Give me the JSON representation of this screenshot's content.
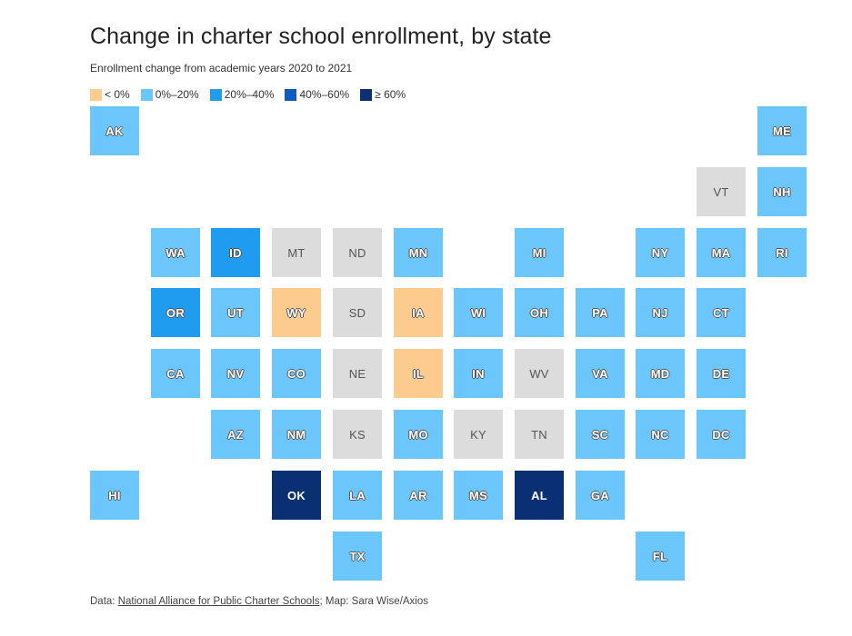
{
  "title": "Change in charter school enrollment, by state",
  "subtitle": "Enrollment change from academic years 2020 to 2021",
  "legend": [
    {
      "label": "< 0%",
      "color": "#fdcb8e"
    },
    {
      "label": "0%–20%",
      "color": "#6ac6fb"
    },
    {
      "label": "20%–40%",
      "color": "#1f9bef"
    },
    {
      "label": "40%–60%",
      "color": "#0c5cbf"
    },
    {
      "label": "≥ 60%",
      "color": "#0a2f73"
    }
  ],
  "no_data_color": "#dcdcdc",
  "states": [
    {
      "abbr": "AK",
      "bin": "0%–20%",
      "row": 0,
      "col": 0
    },
    {
      "abbr": "ME",
      "bin": "0%–20%",
      "row": 0,
      "col": 11
    },
    {
      "abbr": "VT",
      "bin": null,
      "row": 1,
      "col": 10
    },
    {
      "abbr": "NH",
      "bin": "0%–20%",
      "row": 1,
      "col": 11
    },
    {
      "abbr": "WA",
      "bin": "0%–20%",
      "row": 2,
      "col": 1
    },
    {
      "abbr": "ID",
      "bin": "20%–40%",
      "row": 2,
      "col": 2
    },
    {
      "abbr": "MT",
      "bin": null,
      "row": 2,
      "col": 3
    },
    {
      "abbr": "ND",
      "bin": null,
      "row": 2,
      "col": 4
    },
    {
      "abbr": "MN",
      "bin": "0%–20%",
      "row": 2,
      "col": 5
    },
    {
      "abbr": "MI",
      "bin": "0%–20%",
      "row": 2,
      "col": 7
    },
    {
      "abbr": "NY",
      "bin": "0%–20%",
      "row": 2,
      "col": 9
    },
    {
      "abbr": "MA",
      "bin": "0%–20%",
      "row": 2,
      "col": 10
    },
    {
      "abbr": "RI",
      "bin": "0%–20%",
      "row": 2,
      "col": 11
    },
    {
      "abbr": "OR",
      "bin": "20%–40%",
      "row": 3,
      "col": 1
    },
    {
      "abbr": "UT",
      "bin": "0%–20%",
      "row": 3,
      "col": 2
    },
    {
      "abbr": "WY",
      "bin": "< 0%",
      "row": 3,
      "col": 3
    },
    {
      "abbr": "SD",
      "bin": null,
      "row": 3,
      "col": 4
    },
    {
      "abbr": "IA",
      "bin": "< 0%",
      "row": 3,
      "col": 5
    },
    {
      "abbr": "WI",
      "bin": "0%–20%",
      "row": 3,
      "col": 6
    },
    {
      "abbr": "OH",
      "bin": "0%–20%",
      "row": 3,
      "col": 7
    },
    {
      "abbr": "PA",
      "bin": "0%–20%",
      "row": 3,
      "col": 8
    },
    {
      "abbr": "NJ",
      "bin": "0%–20%",
      "row": 3,
      "col": 9
    },
    {
      "abbr": "CT",
      "bin": "0%–20%",
      "row": 3,
      "col": 10
    },
    {
      "abbr": "CA",
      "bin": "0%–20%",
      "row": 4,
      "col": 1
    },
    {
      "abbr": "NV",
      "bin": "0%–20%",
      "row": 4,
      "col": 2
    },
    {
      "abbr": "CO",
      "bin": "0%–20%",
      "row": 4,
      "col": 3
    },
    {
      "abbr": "NE",
      "bin": null,
      "row": 4,
      "col": 4
    },
    {
      "abbr": "IL",
      "bin": "< 0%",
      "row": 4,
      "col": 5
    },
    {
      "abbr": "IN",
      "bin": "0%–20%",
      "row": 4,
      "col": 6
    },
    {
      "abbr": "WV",
      "bin": null,
      "row": 4,
      "col": 7
    },
    {
      "abbr": "VA",
      "bin": "0%–20%",
      "row": 4,
      "col": 8
    },
    {
      "abbr": "MD",
      "bin": "0%–20%",
      "row": 4,
      "col": 9
    },
    {
      "abbr": "DE",
      "bin": "0%–20%",
      "row": 4,
      "col": 10
    },
    {
      "abbr": "AZ",
      "bin": "0%–20%",
      "row": 5,
      "col": 2
    },
    {
      "abbr": "NM",
      "bin": "0%–20%",
      "row": 5,
      "col": 3
    },
    {
      "abbr": "KS",
      "bin": null,
      "row": 5,
      "col": 4
    },
    {
      "abbr": "MO",
      "bin": "0%–20%",
      "row": 5,
      "col": 5
    },
    {
      "abbr": "KY",
      "bin": null,
      "row": 5,
      "col": 6
    },
    {
      "abbr": "TN",
      "bin": null,
      "row": 5,
      "col": 7
    },
    {
      "abbr": "SC",
      "bin": "0%–20%",
      "row": 5,
      "col": 8
    },
    {
      "abbr": "NC",
      "bin": "0%–20%",
      "row": 5,
      "col": 9
    },
    {
      "abbr": "DC",
      "bin": "0%–20%",
      "row": 5,
      "col": 10
    },
    {
      "abbr": "HI",
      "bin": "0%–20%",
      "row": 6,
      "col": 0
    },
    {
      "abbr": "OK",
      "bin": "≥ 60%",
      "row": 6,
      "col": 3
    },
    {
      "abbr": "LA",
      "bin": "0%–20%",
      "row": 6,
      "col": 4
    },
    {
      "abbr": "AR",
      "bin": "0%–20%",
      "row": 6,
      "col": 5
    },
    {
      "abbr": "MS",
      "bin": "0%–20%",
      "row": 6,
      "col": 6
    },
    {
      "abbr": "AL",
      "bin": "≥ 60%",
      "row": 6,
      "col": 7
    },
    {
      "abbr": "GA",
      "bin": "0%–20%",
      "row": 6,
      "col": 8
    },
    {
      "abbr": "TX",
      "bin": "0%–20%",
      "row": 7,
      "col": 4
    },
    {
      "abbr": "FL",
      "bin": "0%–20%",
      "row": 7,
      "col": 9
    }
  ],
  "footer": {
    "prefix": "Data: ",
    "source_link": "National Alliance for Public Charter Schools",
    "suffix": "; Map: Sara Wise/Axios"
  }
}
